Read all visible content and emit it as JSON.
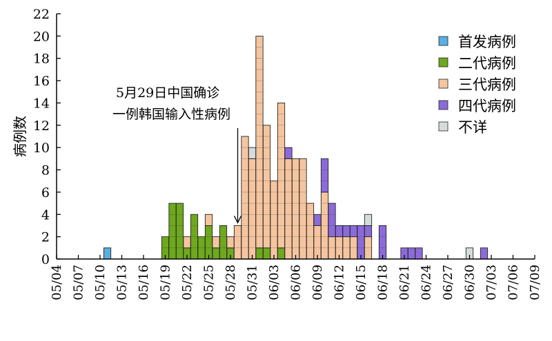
{
  "chart_data": {
    "type": "bar",
    "stacked": true,
    "ylabel": "病例数",
    "xlabel": "",
    "ylim": [
      0,
      22
    ],
    "yticks": [
      0,
      2,
      4,
      6,
      8,
      10,
      12,
      14,
      16,
      18,
      20,
      22
    ],
    "x_start": "05/04",
    "x_end": "07/09",
    "xticks": [
      "05/04",
      "05/07",
      "05/10",
      "05/13",
      "05/16",
      "05/19",
      "05/22",
      "05/25",
      "05/28",
      "05/31",
      "06/03",
      "06/06",
      "06/09",
      "06/12",
      "06/15",
      "06/18",
      "06/21",
      "06/24",
      "06/27",
      "06/30",
      "07/03",
      "07/06",
      "07/09"
    ],
    "legend_position": "top-right",
    "series": [
      {
        "name": "首发病例",
        "color": "#5aaee0",
        "values": [
          [
            "05/11",
            1
          ]
        ]
      },
      {
        "name": "二代病例",
        "color": "#6ea81e",
        "values": [
          [
            "05/19",
            2
          ],
          [
            "05/20",
            5
          ],
          [
            "05/21",
            5
          ],
          [
            "05/22",
            1
          ],
          [
            "05/23",
            4
          ],
          [
            "05/24",
            2
          ],
          [
            "05/25",
            3
          ],
          [
            "05/26",
            1
          ],
          [
            "05/27",
            3
          ],
          [
            "05/28",
            1
          ],
          [
            "06/01",
            1
          ],
          [
            "06/02",
            1
          ],
          [
            "06/04",
            1
          ]
        ]
      },
      {
        "name": "三代病例",
        "color": "#f5c5a0",
        "values": [
          [
            "05/22",
            1
          ],
          [
            "05/25",
            1
          ],
          [
            "05/26",
            1
          ],
          [
            "05/28",
            1
          ],
          [
            "05/29",
            3
          ],
          [
            "05/30",
            11
          ],
          [
            "05/31",
            9
          ],
          [
            "06/01",
            19
          ],
          [
            "06/02",
            11
          ],
          [
            "06/03",
            7
          ],
          [
            "06/04",
            13
          ],
          [
            "06/05",
            9
          ],
          [
            "06/06",
            9
          ],
          [
            "06/07",
            9
          ],
          [
            "06/08",
            5
          ],
          [
            "06/09",
            3
          ],
          [
            "06/10",
            6
          ],
          [
            "06/11",
            2
          ],
          [
            "06/12",
            2
          ],
          [
            "06/13",
            2
          ],
          [
            "06/14",
            2
          ],
          [
            "06/16",
            2
          ]
        ]
      },
      {
        "name": "四代病例",
        "color": "#8b6bd8",
        "values": [
          [
            "06/05",
            1
          ],
          [
            "06/09",
            1
          ],
          [
            "06/10",
            3
          ],
          [
            "06/11",
            3
          ],
          [
            "06/12",
            1
          ],
          [
            "06/13",
            1
          ],
          [
            "06/14",
            1
          ],
          [
            "06/15",
            3
          ],
          [
            "06/16",
            1
          ],
          [
            "06/18",
            3
          ],
          [
            "06/21",
            1
          ],
          [
            "06/22",
            1
          ],
          [
            "06/23",
            1
          ],
          [
            "07/02",
            1
          ]
        ]
      },
      {
        "name": "不详",
        "color": "#d6dcdc",
        "values": [
          [
            "05/31",
            1
          ],
          [
            "06/16",
            1
          ],
          [
            "06/30",
            1
          ]
        ]
      }
    ],
    "annotations": [
      {
        "lines": [
          "5月29日中国确诊",
          "一例韩国输入性病例"
        ],
        "date": "05/29",
        "value": 3
      }
    ]
  }
}
